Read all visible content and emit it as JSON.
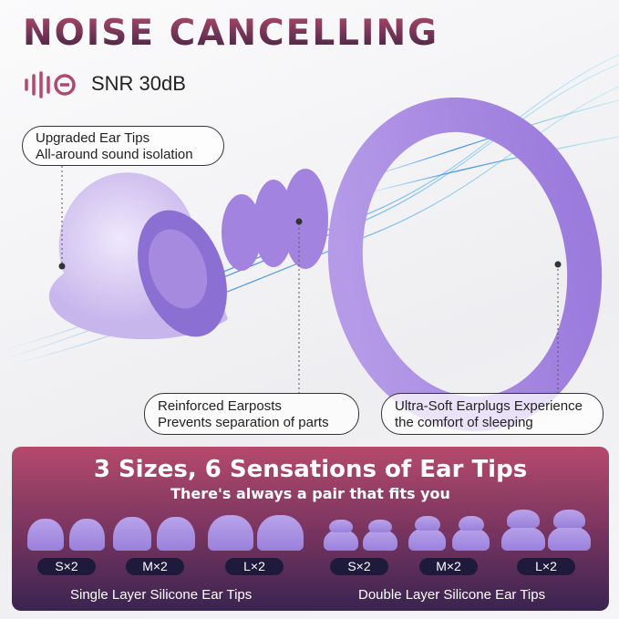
{
  "header": {
    "title": "NOISE CANCELLING",
    "rating": "SNR 30dB",
    "rating_icon": "sound-wave-mute-icon",
    "accent": "#b04a6c"
  },
  "callouts": [
    {
      "line1": "Upgraded Ear Tips",
      "line2": "All-around sound isolation"
    },
    {
      "line1": "Reinforced Earposts",
      "line2": "Prevents separation of parts"
    },
    {
      "line1": "Ultra-Soft Earplugs Experience",
      "line2": "the comfort of sleeping"
    }
  ],
  "banner": {
    "title": "3 Sizes, 6 Sensations of Ear Tips",
    "subtitle": "There's always a pair that fits you",
    "groups": [
      {
        "label": "Single Layer Silicone Ear Tips",
        "sizes": [
          "S×2",
          "M×2",
          "L×2"
        ]
      },
      {
        "label": "Double Layer Silicone Ear Tips",
        "sizes": [
          "S×2",
          "M×2",
          "L×2"
        ]
      }
    ]
  }
}
